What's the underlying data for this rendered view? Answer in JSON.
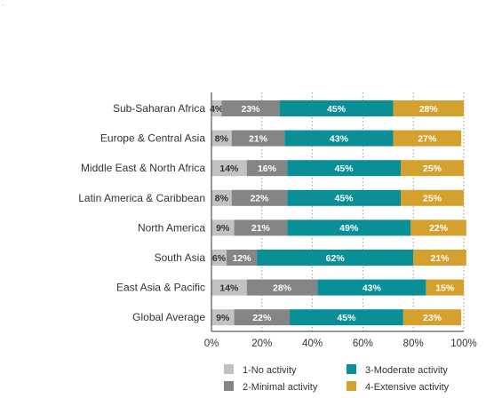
{
  "corner_mark": ".",
  "chart_data": {
    "type": "bar",
    "orientation": "horizontal",
    "stacked": true,
    "categories": [
      "Sub-Saharan Africa",
      "Europe & Central Asia",
      "Middle East & North Africa",
      "Latin America & Caribbean",
      "North America",
      "South Asia",
      "East Asia & Pacific",
      "Global Average"
    ],
    "series": [
      {
        "name": "1-No activity",
        "color": "#c2c2c4",
        "label_color": "#333333",
        "values": [
          4,
          8,
          14,
          8,
          9,
          6,
          14,
          9
        ],
        "labels": [
          "4%",
          "8%",
          "14%",
          "8%",
          "9%",
          "6%",
          "14%",
          "9%"
        ]
      },
      {
        "name": "2-Minimal activity",
        "color": "#848587",
        "label_color": "#ffffff",
        "values": [
          23,
          21,
          16,
          22,
          21,
          12,
          28,
          22
        ],
        "labels": [
          "23%",
          "21%",
          "16%",
          "22%",
          "21%",
          "12%",
          "28%",
          "22%"
        ]
      },
      {
        "name": "3-Moderate activity",
        "color": "#0a8f97",
        "label_color": "#ffffff",
        "values": [
          45,
          43,
          45,
          45,
          49,
          62,
          43,
          45
        ],
        "labels": [
          "45%",
          "43%",
          "45%",
          "45%",
          "49%",
          "62%",
          "43%",
          "45%"
        ]
      },
      {
        "name": "4-Extensive activity",
        "color": "#d5a12e",
        "label_color": "#ffffff",
        "values": [
          28,
          27,
          25,
          25,
          22,
          21,
          15,
          23
        ],
        "labels": [
          "28%",
          "27%",
          "25%",
          "25%",
          "22%",
          "21%",
          "15%",
          "23%"
        ]
      }
    ],
    "xlim": [
      0,
      100
    ],
    "x_ticks": [
      "0%",
      "20%",
      "40%",
      "60%",
      "80%",
      "100%"
    ],
    "grid": "vertical dotted",
    "legend_position": "bottom",
    "xlabel": "",
    "ylabel": "",
    "title": ""
  }
}
